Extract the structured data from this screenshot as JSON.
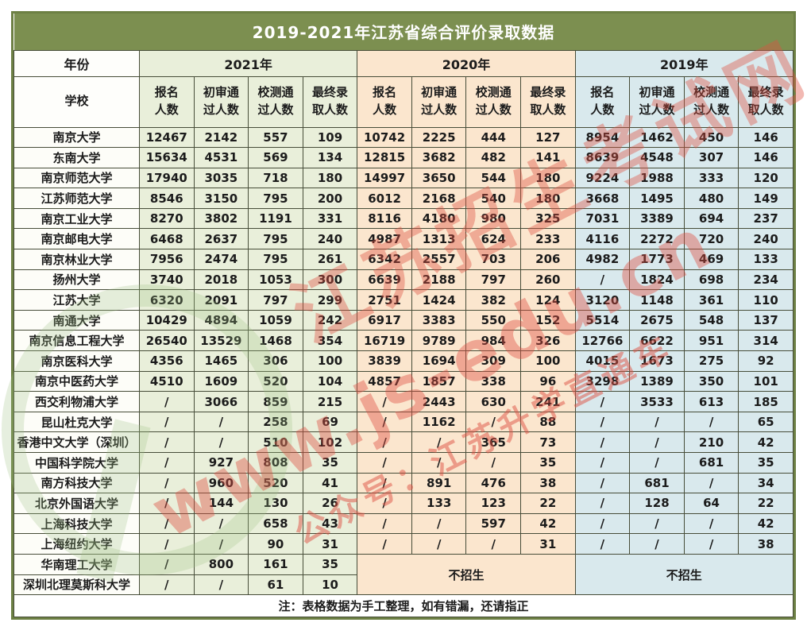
{
  "title": "2019-2021年江苏省综合评价录取数据",
  "footer_note": "注：表格数据为手工整理，如有错漏，还请指正",
  "no_enroll_label": "不招生",
  "header": {
    "year_label": "年份",
    "school_label": "学校",
    "years": [
      "2021年",
      "2020年",
      "2019年"
    ],
    "metrics": [
      "报名\n人数",
      "初审通\n过人数",
      "校测通\n过人数",
      "最终录\n取人数"
    ]
  },
  "rows": [
    {
      "school": "南京大学",
      "y2021": [
        "12467",
        "2142",
        "557",
        "109"
      ],
      "y2020": [
        "10742",
        "2225",
        "444",
        "127"
      ],
      "y2019": [
        "8954",
        "1462",
        "450",
        "146"
      ]
    },
    {
      "school": "东南大学",
      "y2021": [
        "15634",
        "4531",
        "569",
        "134"
      ],
      "y2020": [
        "12815",
        "3682",
        "482",
        "141"
      ],
      "y2019": [
        "8639",
        "4548",
        "307",
        "146"
      ]
    },
    {
      "school": "南京师范大学",
      "y2021": [
        "17940",
        "3035",
        "718",
        "180"
      ],
      "y2020": [
        "14997",
        "3650",
        "544",
        "180"
      ],
      "y2019": [
        "9224",
        "1988",
        "333",
        "120"
      ]
    },
    {
      "school": "江苏师范大学",
      "y2021": [
        "8546",
        "3150",
        "795",
        "200"
      ],
      "y2020": [
        "6012",
        "2168",
        "540",
        "180"
      ],
      "y2019": [
        "3668",
        "1495",
        "480",
        "149"
      ]
    },
    {
      "school": "南京工业大学",
      "y2021": [
        "8270",
        "3802",
        "1191",
        "331"
      ],
      "y2020": [
        "8116",
        "4180",
        "980",
        "325"
      ],
      "y2019": [
        "7031",
        "3389",
        "694",
        "237"
      ]
    },
    {
      "school": "南京邮电大学",
      "y2021": [
        "6468",
        "2637",
        "795",
        "240"
      ],
      "y2020": [
        "4987",
        "1313",
        "624",
        "233"
      ],
      "y2019": [
        "4116",
        "2272",
        "720",
        "240"
      ]
    },
    {
      "school": "南京林业大学",
      "y2021": [
        "7956",
        "2474",
        "795",
        "261"
      ],
      "y2020": [
        "6342",
        "2557",
        "703",
        "206"
      ],
      "y2019": [
        "4982",
        "1773",
        "469",
        "133"
      ]
    },
    {
      "school": "扬州大学",
      "y2021": [
        "3740",
        "2018",
        "1053",
        "300"
      ],
      "y2020": [
        "6639",
        "2188",
        "797",
        "260"
      ],
      "y2019": [
        "/",
        "1824",
        "698",
        "234"
      ]
    },
    {
      "school": "江苏大学",
      "y2021": [
        "6320",
        "2091",
        "797",
        "299"
      ],
      "y2020": [
        "2751",
        "1424",
        "382",
        "124"
      ],
      "y2019": [
        "3120",
        "1148",
        "361",
        "110"
      ]
    },
    {
      "school": "南通大学",
      "y2021": [
        "10429",
        "4894",
        "1059",
        "242"
      ],
      "y2020": [
        "6917",
        "3383",
        "550",
        "152"
      ],
      "y2019": [
        "5514",
        "2675",
        "548",
        "137"
      ]
    },
    {
      "school": "南京信息工程大学",
      "y2021": [
        "26540",
        "13529",
        "1468",
        "354"
      ],
      "y2020": [
        "16719",
        "9789",
        "984",
        "326"
      ],
      "y2019": [
        "12766",
        "6622",
        "951",
        "314"
      ]
    },
    {
      "school": "南京医科大学",
      "y2021": [
        "4356",
        "1465",
        "306",
        "100"
      ],
      "y2020": [
        "3839",
        "1694",
        "309",
        "100"
      ],
      "y2019": [
        "4015",
        "1673",
        "275",
        "92"
      ]
    },
    {
      "school": "南京中医药大学",
      "y2021": [
        "4510",
        "1609",
        "520",
        "104"
      ],
      "y2020": [
        "4857",
        "1857",
        "338",
        "96"
      ],
      "y2019": [
        "3298",
        "1389",
        "350",
        "101"
      ]
    },
    {
      "school": "西交利物浦大学",
      "y2021": [
        "/",
        "3066",
        "859",
        "215"
      ],
      "y2020": [
        "/",
        "2443",
        "630",
        "241"
      ],
      "y2019": [
        "/",
        "3533",
        "613",
        "185"
      ]
    },
    {
      "school": "昆山杜克大学",
      "y2021": [
        "/",
        "/",
        "258",
        "69"
      ],
      "y2020": [
        "/",
        "1162",
        "/",
        "88"
      ],
      "y2019": [
        "/",
        "/",
        "/",
        "65"
      ]
    },
    {
      "school": "香港中文大学（深圳）",
      "y2021": [
        "/",
        "/",
        "510",
        "102"
      ],
      "y2020": [
        "/",
        "/",
        "365",
        "73"
      ],
      "y2019": [
        "/",
        "/",
        "210",
        "42"
      ]
    },
    {
      "school": "中国科学院大学",
      "y2021": [
        "/",
        "927",
        "808",
        "35"
      ],
      "y2020": [
        "/",
        "/",
        "/",
        "35"
      ],
      "y2019": [
        "/",
        "/",
        "681",
        "35"
      ]
    },
    {
      "school": "南方科技大学",
      "y2021": [
        "/",
        "960",
        "520",
        "41"
      ],
      "y2020": [
        "/",
        "891",
        "476",
        "38"
      ],
      "y2019": [
        "/",
        "681",
        "/",
        "34"
      ]
    },
    {
      "school": "北京外国语大学",
      "y2021": [
        "/",
        "144",
        "130",
        "26"
      ],
      "y2020": [
        "/",
        "133",
        "123",
        "22"
      ],
      "y2019": [
        "/",
        "128",
        "64",
        "22"
      ]
    },
    {
      "school": "上海科技大学",
      "y2021": [
        "/",
        "/",
        "658",
        "43"
      ],
      "y2020": [
        "/",
        "/",
        "597",
        "42"
      ],
      "y2019": [
        "/",
        "/",
        "/",
        "42"
      ]
    },
    {
      "school": "上海纽约大学",
      "y2021": [
        "/",
        "/",
        "90",
        "31"
      ],
      "y2020": [
        "/",
        "/",
        "/",
        "31"
      ],
      "y2019": [
        "/",
        "/",
        "/",
        "38"
      ]
    },
    {
      "school": "华南理工大学",
      "y2021": [
        "/",
        "800",
        "161",
        "35"
      ],
      "merged": "start"
    },
    {
      "school": "深圳北理莫斯科大学",
      "y2021": [
        "/",
        "/",
        "61",
        "10"
      ],
      "merged": "skip"
    }
  ],
  "watermarks": {
    "site_name": "江苏招生考试网",
    "site_url": "www.js-edu.cn",
    "wechat": "公众号：江苏升学直通车"
  },
  "colors": {
    "title_bg": "#7c8f50",
    "frame_border": "#6d8044",
    "grid_border": "#474d39",
    "section_2021": "#e9efda",
    "section_2020": "#fbe6ce",
    "section_2019": "#d9e9ed",
    "watermark_red": "#de4f42",
    "watermark_green": "#a0c382"
  }
}
